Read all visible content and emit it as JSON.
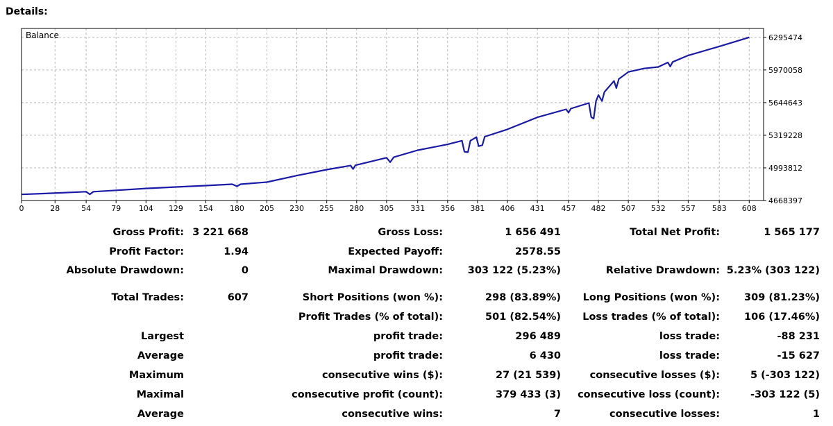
{
  "page": {
    "heading": "Details:"
  },
  "chart_data": {
    "type": "line",
    "title": "Balance",
    "xlabel": "",
    "ylabel": "",
    "xlim": [
      0,
      620
    ],
    "ylim": [
      4668397,
      6384000
    ],
    "x_ticks": [
      0,
      28,
      54,
      79,
      104,
      129,
      154,
      180,
      205,
      230,
      255,
      280,
      305,
      331,
      356,
      381,
      406,
      431,
      457,
      482,
      507,
      532,
      557,
      583,
      608
    ],
    "y_ticks": [
      4668397,
      4993812,
      5319228,
      5644643,
      5970058,
      6295474
    ],
    "series": [
      {
        "name": "Balance",
        "color": "#1a1aa8",
        "x": [
          0,
          20,
          54,
          57,
          60,
          79,
          104,
          129,
          154,
          176,
          180,
          183,
          205,
          230,
          255,
          275,
          277,
          279,
          305,
          308,
          311,
          331,
          356,
          368,
          370,
          373,
          375,
          380,
          382,
          385,
          387,
          406,
          431,
          455,
          457,
          459,
          474,
          476,
          478,
          480,
          482,
          485,
          487,
          495,
          497,
          499,
          507,
          520,
          532,
          540,
          542,
          544,
          557,
          583,
          608
        ],
        "y": [
          4729000,
          4738000,
          4756000,
          4730000,
          4756000,
          4770000,
          4789000,
          4803000,
          4817000,
          4831000,
          4810000,
          4831000,
          4852000,
          4917000,
          4976000,
          5017000,
          4982000,
          5020000,
          5095000,
          5050000,
          5100000,
          5170000,
          5228000,
          5265000,
          5155000,
          5150000,
          5265000,
          5300000,
          5210000,
          5220000,
          5305000,
          5378000,
          5498000,
          5578000,
          5545000,
          5585000,
          5640000,
          5500000,
          5485000,
          5660000,
          5720000,
          5660000,
          5750000,
          5860000,
          5790000,
          5880000,
          5950000,
          5985000,
          6000000,
          6045000,
          6005000,
          6050000,
          6115000,
          6205000,
          6295474
        ]
      }
    ]
  },
  "stats": {
    "gross_profit": {
      "label": "Gross Profit:",
      "value": "3 221 668"
    },
    "gross_loss": {
      "label": "Gross Loss:",
      "value": "1 656 491"
    },
    "total_net_profit": {
      "label": "Total Net Profit:",
      "value": "1 565 177"
    },
    "profit_factor": {
      "label": "Profit Factor:",
      "value": "1.94"
    },
    "expected_payoff": {
      "label": "Expected Payoff:",
      "value": "2578.55"
    },
    "absolute_drawdown": {
      "label": "Absolute Drawdown:",
      "value": "0"
    },
    "maximal_drawdown": {
      "label": "Maximal Drawdown:",
      "value": "303 122 (5.23%)"
    },
    "relative_drawdown": {
      "label": "Relative Drawdown:",
      "value": "5.23% (303 122)"
    },
    "total_trades": {
      "label": "Total Trades:",
      "value": "607"
    },
    "short_positions": {
      "label": "Short Positions (won %):",
      "value": "298 (83.89%)"
    },
    "long_positions": {
      "label": "Long Positions (won %):",
      "value": "309 (81.23%)"
    },
    "profit_trades": {
      "label": "Profit Trades (% of total):",
      "value": "501 (82.54%)"
    },
    "loss_trades": {
      "label": "Loss trades (% of total):",
      "value": "106 (17.46%)"
    },
    "largest": {
      "label": "Largest",
      "profit_label": "profit trade:",
      "profit_value": "296 489",
      "loss_label": "loss trade:",
      "loss_value": "-88 231"
    },
    "average": {
      "label": "Average",
      "profit_label": "profit trade:",
      "profit_value": "6 430",
      "loss_label": "loss trade:",
      "loss_value": "-15 627"
    },
    "maximum": {
      "label": "Maximum",
      "wins_label": "consecutive wins ($):",
      "wins_value": "27 (21 539)",
      "losses_label": "consecutive losses ($):",
      "losses_value": "5 (-303 122)"
    },
    "maximal": {
      "label": "Maximal",
      "profit_label": "consecutive profit (count):",
      "profit_value": "379 433 (3)",
      "loss_label": "consecutive loss (count):",
      "loss_value": "-303 122 (5)"
    },
    "average_consecutive": {
      "label": "Average",
      "wins_label": "consecutive wins:",
      "wins_value": "7",
      "losses_label": "consecutive losses:",
      "losses_value": "1"
    }
  }
}
